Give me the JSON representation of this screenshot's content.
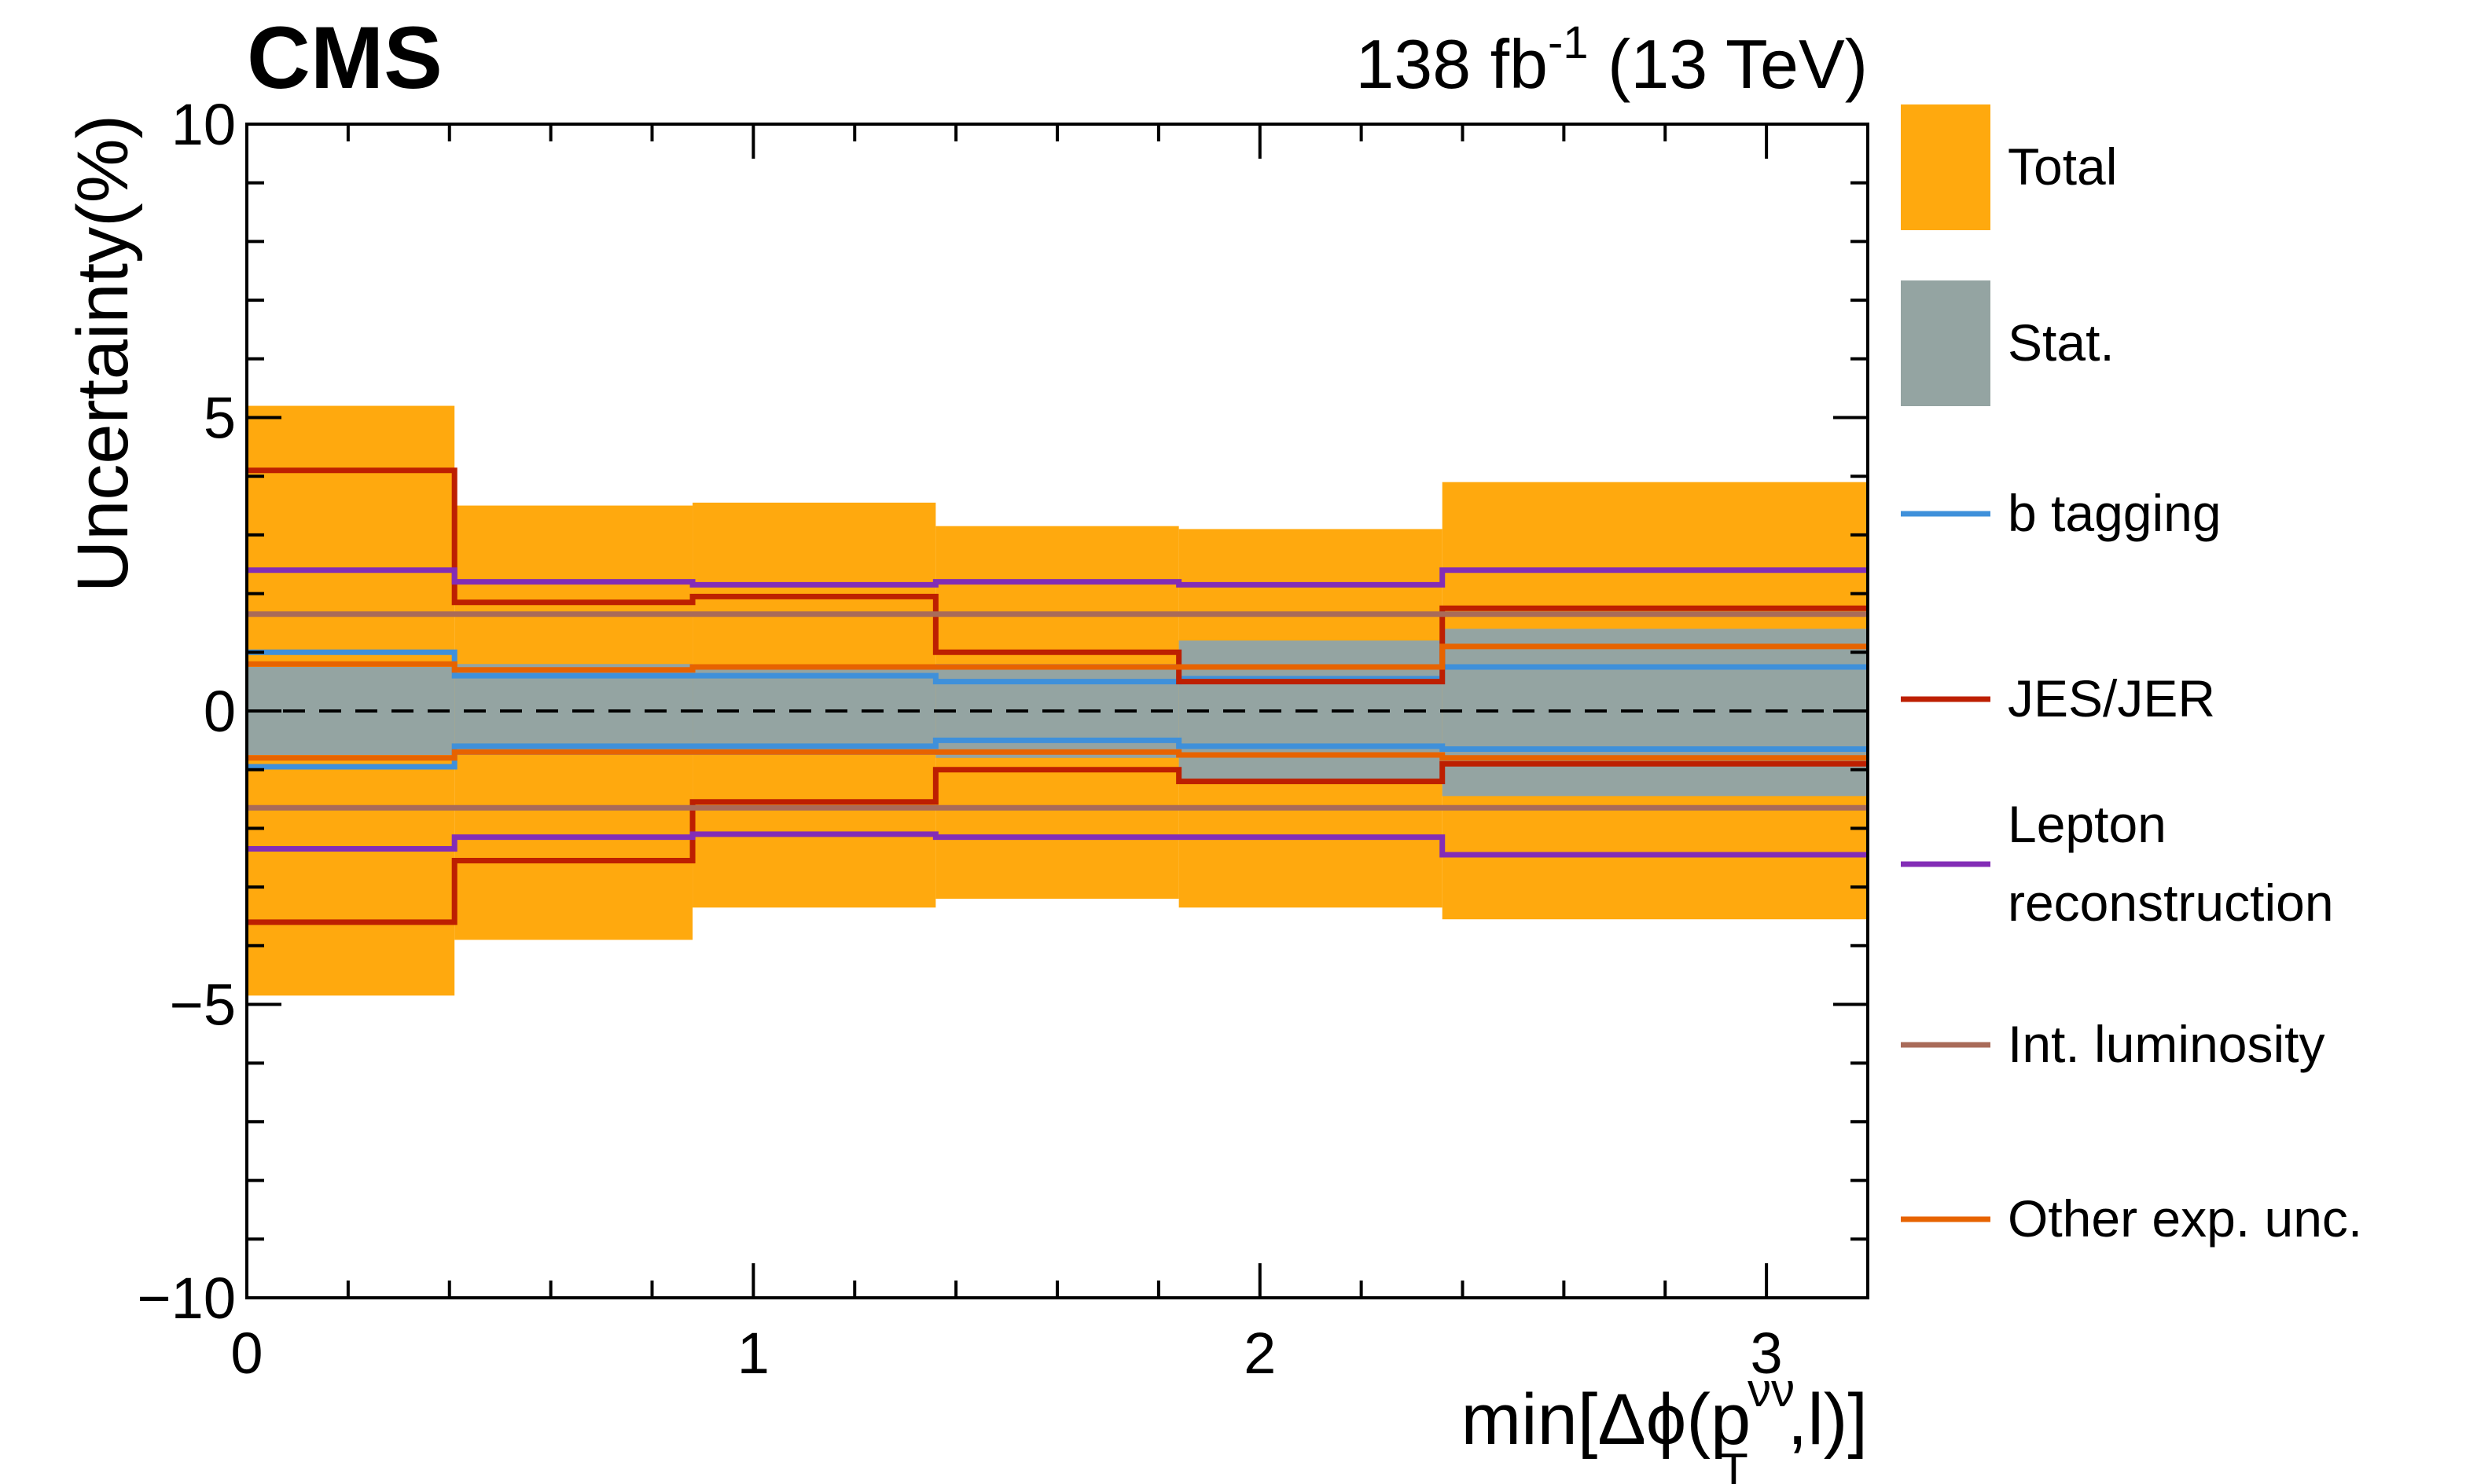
{
  "chart_data": {
    "type": "step-band",
    "experiment": "CMS",
    "lumi_label": {
      "value": "138 fb",
      "superscript": "-1",
      "energy": " (13 TeV)"
    },
    "xlabel": {
      "prefix": "min[Δϕ(p",
      "subscript": "T",
      "superscript": "νν",
      "suffix": ",l)]"
    },
    "ylabel": "Uncertainty(%)",
    "xlim": [
      0,
      3.2
    ],
    "ylim": [
      -10,
      10
    ],
    "x_ticks": [
      0,
      1,
      2,
      3
    ],
    "x_tick_labels": [
      "0",
      "1",
      "2",
      "3"
    ],
    "y_ticks": [
      -10,
      -5,
      0,
      5,
      10
    ],
    "y_tick_labels": [
      "−10",
      "−5",
      "0",
      "5",
      "10"
    ],
    "bin_edges": [
      0,
      0.41,
      0.88,
      1.36,
      1.84,
      2.36,
      3.2
    ],
    "reference_line": 0,
    "bands": [
      {
        "name": "Total",
        "color": "#ffa90e",
        "up": [
          5.2,
          3.5,
          3.55,
          3.15,
          3.1,
          3.9
        ],
        "down": [
          -4.85,
          -3.9,
          -3.35,
          -3.2,
          -3.35,
          -3.55
        ]
      },
      {
        "name": "Stat.",
        "color": "#94a4a2",
        "up": [
          0.75,
          0.8,
          0.75,
          0.8,
          1.2,
          1.4
        ],
        "down": [
          -0.75,
          -0.75,
          -0.75,
          -0.8,
          -1.2,
          -1.45
        ]
      }
    ],
    "series": [
      {
        "name": "b tagging",
        "color": "#3f90da",
        "up": [
          1.0,
          0.6,
          0.6,
          0.5,
          0.55,
          0.75
        ],
        "down": [
          -0.95,
          -0.6,
          -0.6,
          -0.5,
          -0.6,
          -0.65
        ]
      },
      {
        "name": "JES/JER",
        "color": "#bd1f01",
        "up": [
          4.1,
          1.85,
          1.95,
          1.0,
          0.5,
          1.75
        ],
        "down": [
          -3.6,
          -2.55,
          -1.55,
          -1.0,
          -1.2,
          -0.9
        ]
      },
      {
        "name": "Lepton\nreconstruction",
        "color": "#832db6",
        "up": [
          2.4,
          2.2,
          2.15,
          2.2,
          2.15,
          2.4
        ],
        "down": [
          -2.35,
          -2.15,
          -2.1,
          -2.15,
          -2.15,
          -2.45
        ]
      },
      {
        "name": "Int. luminosity",
        "color": "#a96b59",
        "up": [
          1.65,
          1.65,
          1.65,
          1.65,
          1.65,
          1.65
        ],
        "down": [
          -1.65,
          -1.65,
          -1.65,
          -1.65,
          -1.65,
          -1.65
        ]
      },
      {
        "name": "Other exp. unc.",
        "color": "#e76300",
        "up": [
          0.8,
          0.7,
          0.75,
          0.75,
          0.75,
          1.1
        ],
        "down": [
          -0.8,
          -0.7,
          -0.7,
          -0.7,
          -0.75,
          -0.8
        ]
      }
    ],
    "legend": [
      {
        "label": "Total",
        "kind": "box"
      },
      {
        "label": "Stat.",
        "kind": "box"
      },
      {
        "label": "b tagging",
        "kind": "line"
      },
      {
        "label": "JES/JER",
        "kind": "line"
      },
      {
        "label": "Lepton\nreconstruction",
        "kind": "line"
      },
      {
        "label": "Int. luminosity",
        "kind": "line"
      },
      {
        "label": "Other exp. unc.",
        "kind": "line"
      }
    ]
  }
}
